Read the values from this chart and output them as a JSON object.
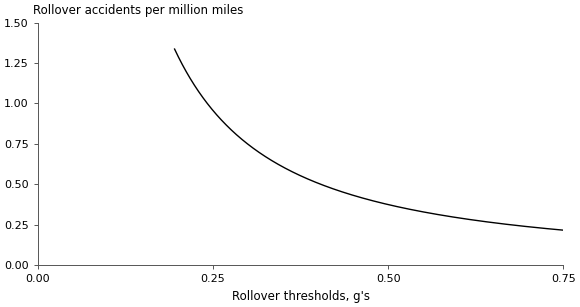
{
  "title": "Rollover accidents per million miles",
  "xlabel": "Rollover thresholds, g's",
  "ylabel": "",
  "xlim": [
    0.0,
    0.75
  ],
  "ylim": [
    0.0,
    1.5
  ],
  "xticks": [
    0.0,
    0.25,
    0.5,
    0.75
  ],
  "yticks": [
    0.0,
    0.25,
    0.5,
    0.75,
    1.0,
    1.25,
    1.5
  ],
  "xtick_labels": [
    "0.00",
    "0.25",
    "0.50",
    "0.75"
  ],
  "ytick_labels": [
    "0.00",
    "0.25",
    "0.50",
    "0.75",
    "1.00",
    "1.25",
    "1.50"
  ],
  "curve_x_start": 0.195,
  "curve_x_end": 0.75,
  "curve_a": 0.147,
  "curve_b": 1.35,
  "line_color": "#000000",
  "line_width": 1.0,
  "background_color": "#ffffff",
  "title_fontsize": 8.5,
  "axis_fontsize": 8.5,
  "tick_fontsize": 8.0
}
